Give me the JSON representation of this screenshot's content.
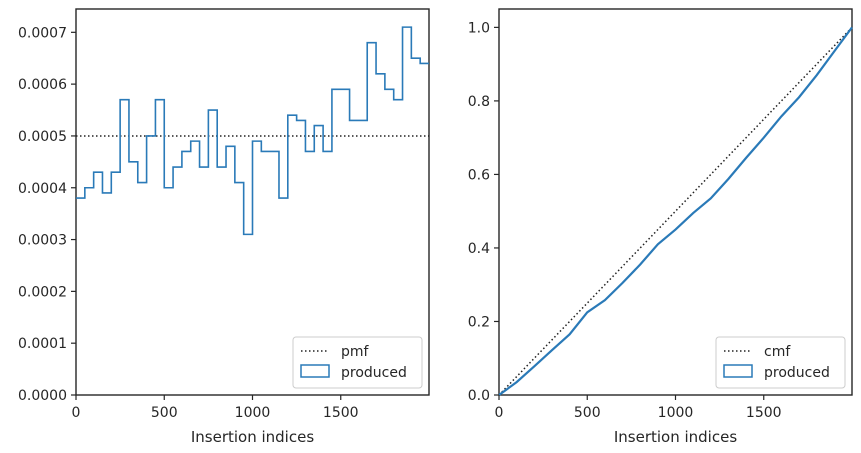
{
  "colors": {
    "pmf_line": "#222222",
    "produced": "#2a7ab8",
    "axes": "#262626"
  },
  "chart_data": [
    {
      "type": "step",
      "xlabel": "Insertion indices",
      "ylabel": "",
      "xlim": [
        0,
        2000
      ],
      "ylim": [
        0,
        0.000745
      ],
      "xticks": [
        0,
        500,
        1000,
        1500
      ],
      "xtick_labels": [
        "0",
        "500",
        "1000",
        "1500"
      ],
      "yticks": [
        0,
        0.0001,
        0.0002,
        0.0003,
        0.0004,
        0.0005,
        0.0006,
        0.0007
      ],
      "ytick_labels": [
        "0.0000",
        "0.0001",
        "0.0002",
        "0.0003",
        "0.0004",
        "0.0005",
        "0.0006",
        "0.0007"
      ],
      "grid": false,
      "legend_position": "lower-right",
      "reference": {
        "name": "pmf",
        "value": 0.0005,
        "style": "dotted"
      },
      "series": [
        {
          "name": "produced",
          "bin_width": 50,
          "x_start": 0,
          "values": [
            0.00038,
            0.0004,
            0.00043,
            0.00039,
            0.00043,
            0.00057,
            0.00045,
            0.00041,
            0.0005,
            0.00057,
            0.0004,
            0.00044,
            0.00047,
            0.00049,
            0.00044,
            0.00055,
            0.00044,
            0.00048,
            0.00041,
            0.00031,
            0.00049,
            0.00047,
            0.00047,
            0.00038,
            0.00054,
            0.00053,
            0.00047,
            0.00052,
            0.00047,
            0.00059,
            0.00059,
            0.00053,
            0.00053,
            0.00068,
            0.00062,
            0.00059,
            0.00057,
            0.00071,
            0.00065,
            0.00064
          ]
        }
      ]
    },
    {
      "type": "step",
      "xlabel": "Insertion indices",
      "ylabel": "",
      "xlim": [
        0,
        2000
      ],
      "ylim": [
        0,
        1.05
      ],
      "xticks": [
        0,
        500,
        1000,
        1500
      ],
      "xtick_labels": [
        "0",
        "500",
        "1000",
        "1500"
      ],
      "yticks": [
        0,
        0.2,
        0.4,
        0.6,
        0.8,
        1.0
      ],
      "ytick_labels": [
        "0.0",
        "0.2",
        "0.4",
        "0.6",
        "0.8",
        "1.0"
      ],
      "grid": false,
      "legend_position": "lower-right",
      "reference": {
        "name": "cmf",
        "line": [
          [
            0,
            0
          ],
          [
            2000,
            1.0
          ]
        ],
        "style": "dotted"
      },
      "series": [
        {
          "name": "produced",
          "x": [
            0,
            100,
            200,
            300,
            400,
            500,
            600,
            700,
            800,
            900,
            1000,
            1100,
            1200,
            1300,
            1400,
            1500,
            1600,
            1700,
            1800,
            1900,
            2000
          ],
          "y": [
            0,
            0.035,
            0.078,
            0.122,
            0.165,
            0.225,
            0.258,
            0.305,
            0.355,
            0.41,
            0.45,
            0.495,
            0.535,
            0.588,
            0.645,
            0.7,
            0.758,
            0.81,
            0.87,
            0.935,
            1.0
          ]
        }
      ]
    }
  ]
}
